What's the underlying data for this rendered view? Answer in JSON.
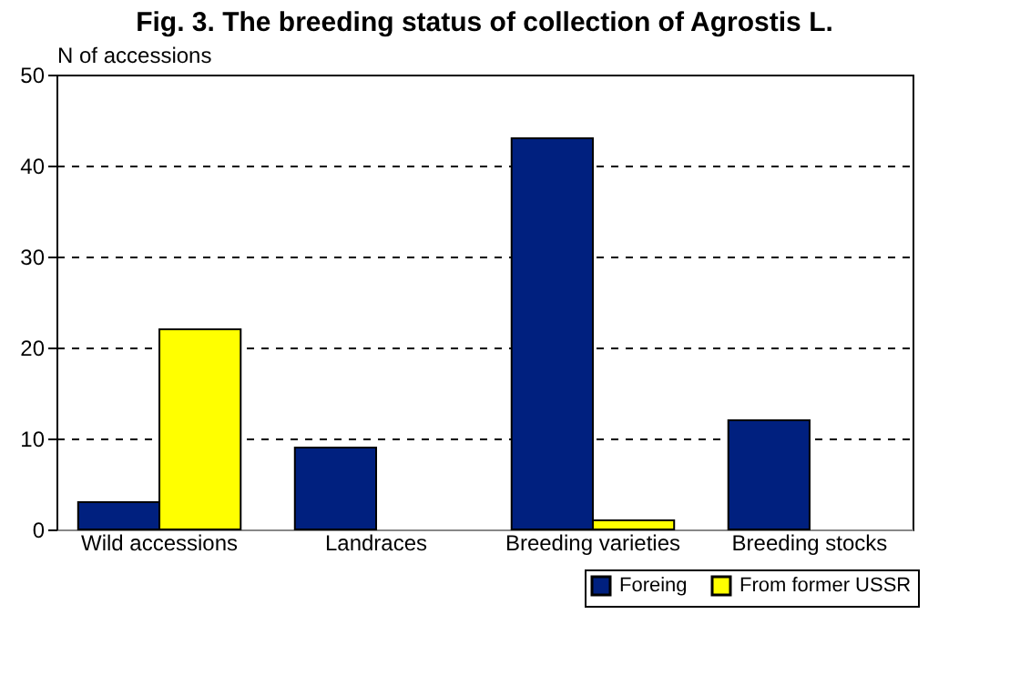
{
  "chart_data": {
    "type": "bar",
    "title": "Fig. 3. The breeding status of collection of Agrostis L.",
    "ylabel": "N of accessions",
    "categories": [
      "Wild accessions",
      "Landraces",
      "Breeding varieties",
      "Breeding stocks"
    ],
    "series": [
      {
        "name": "Foreing",
        "color": "#00207f",
        "values": [
          3,
          9,
          43,
          12
        ]
      },
      {
        "name": "From former USSR",
        "color": "#ffff00",
        "values": [
          22,
          null,
          1,
          null
        ]
      }
    ],
    "ylim": [
      0,
      50
    ],
    "yticks": [
      0,
      10,
      20,
      30,
      40,
      50
    ],
    "grid": "y",
    "legend": "bottom right"
  }
}
